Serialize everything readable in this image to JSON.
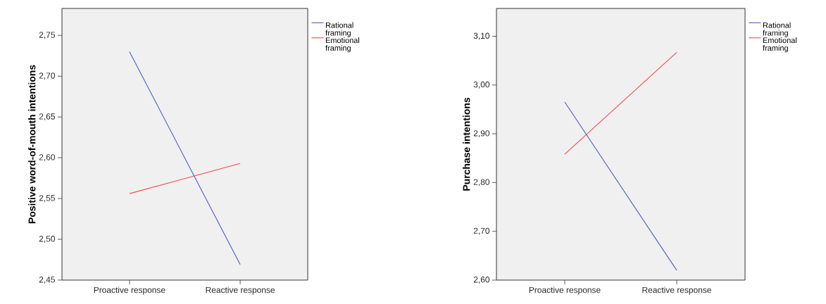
{
  "chart_data": [
    {
      "type": "line",
      "categories": [
        "Proactive response",
        "Reactive response"
      ],
      "ylabel": "Positive word-of-mouth intentions",
      "series": [
        {
          "name": "Rational framing",
          "color": "#4a5fbf",
          "values": [
            2.73,
            2.469
          ]
        },
        {
          "name": "Emotional framing",
          "color": "#f2484c",
          "values": [
            2.556,
            2.593
          ]
        }
      ],
      "ylim": [
        2.45,
        2.783
      ],
      "yticks": [
        {
          "value": 2.45,
          "label": "2,45"
        },
        {
          "value": 2.5,
          "label": "2,50"
        },
        {
          "value": 2.55,
          "label": "2,55"
        },
        {
          "value": 2.6,
          "label": "2,60"
        },
        {
          "value": 2.65,
          "label": "2,65"
        },
        {
          "value": 2.7,
          "label": "2,70"
        },
        {
          "value": 2.75,
          "label": "2,75"
        }
      ],
      "legend": "top right",
      "marker": "none",
      "line_style": "solid"
    },
    {
      "type": "line",
      "categories": [
        "Proactive response",
        "Reactive response"
      ],
      "ylabel": "Purchase intentions",
      "series": [
        {
          "name": "Rational framing",
          "color": "#4a5fbf",
          "values": [
            2.965,
            2.62
          ]
        },
        {
          "name": "Emotional framing",
          "color": "#f2484c",
          "values": [
            2.858,
            3.067
          ]
        }
      ],
      "ylim": [
        2.6,
        3.157
      ],
      "yticks": [
        {
          "value": 2.6,
          "label": "2,60"
        },
        {
          "value": 2.7,
          "label": "2,70"
        },
        {
          "value": 2.8,
          "label": "2,80"
        },
        {
          "value": 2.9,
          "label": "2,90"
        },
        {
          "value": 3.0,
          "label": "3,00"
        },
        {
          "value": 3.1,
          "label": "3,10"
        }
      ],
      "legend": "top right",
      "marker": "none",
      "line_style": "solid"
    }
  ]
}
